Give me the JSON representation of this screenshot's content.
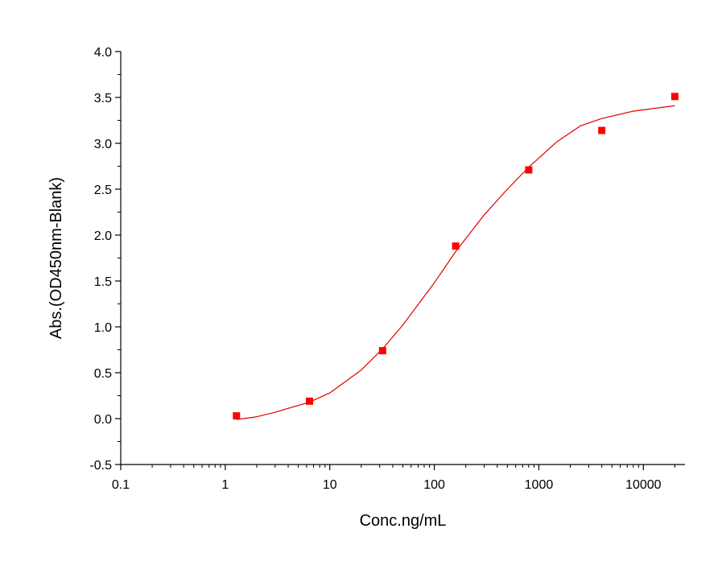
{
  "chart_data": {
    "type": "scatter",
    "title": "",
    "xlabel": "Conc.ng/mL",
    "ylabel": "Abs.(OD450nm-Blank)",
    "x_scale": "log",
    "xlim": [
      0.1,
      25000
    ],
    "ylim": [
      -0.5,
      4.0
    ],
    "x_ticks": [
      0.1,
      1,
      10,
      100,
      1000,
      10000
    ],
    "x_tick_labels": [
      "0.1",
      "1",
      "10",
      "100",
      "1000",
      "10000"
    ],
    "y_ticks": [
      -0.5,
      0.0,
      0.5,
      1.0,
      1.5,
      2.0,
      2.5,
      3.0,
      3.5,
      4.0
    ],
    "y_tick_labels": [
      "-0.5",
      "0.0",
      "0.5",
      "1.0",
      "1.5",
      "2.0",
      "2.5",
      "3.0",
      "3.5",
      "4.0"
    ],
    "grid": false,
    "legend": "none",
    "series": [
      {
        "kind": "points",
        "marker": "square",
        "color": "#ff0000",
        "x": [
          1.28,
          6.4,
          32,
          160,
          800,
          4000,
          20000
        ],
        "y": [
          0.03,
          0.19,
          0.74,
          1.88,
          2.71,
          3.14,
          3.51
        ]
      },
      {
        "kind": "fit-curve",
        "color": "#e00000",
        "x": [
          1.28,
          2,
          3,
          6.4,
          10,
          20,
          32,
          50,
          100,
          160,
          300,
          500,
          800,
          1500,
          2500,
          4000,
          8000,
          20000
        ],
        "y": [
          -0.01,
          0.02,
          0.07,
          0.18,
          0.28,
          0.53,
          0.76,
          1.02,
          1.48,
          1.82,
          2.22,
          2.5,
          2.74,
          3.02,
          3.19,
          3.27,
          3.35,
          3.41
        ]
      }
    ]
  }
}
